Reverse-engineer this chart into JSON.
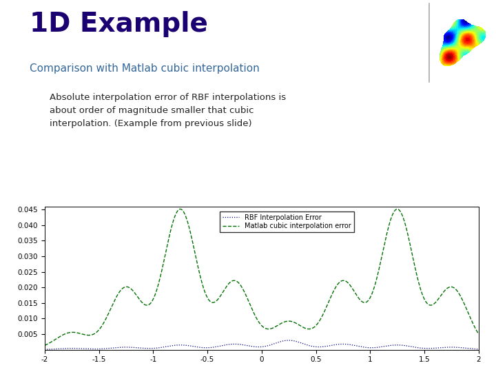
{
  "title": "1D Example",
  "subtitle": "Comparison with Matlab cubic interpolation",
  "body_text": "Absolute interpolation error of RBF interpolations is\nabout order of magnitude smaller that cubic\ninterpolation. (Example from previous slide)",
  "bg_color": "#ffffff",
  "title_color": "#1a0070",
  "subtitle_color": "#336699",
  "body_text_color": "#222222",
  "plot_xlim": [
    -2,
    2
  ],
  "plot_ylim": [
    0,
    0.046
  ],
  "ytick_vals": [
    0.005,
    0.01,
    0.015,
    0.02,
    0.025,
    0.03,
    0.035,
    0.04,
    0.045
  ],
  "xtick_vals": [
    -2,
    -1.5,
    -1,
    -0.5,
    0,
    0.5,
    1,
    1.5,
    2
  ],
  "rbf_color": "#00008B",
  "matlab_color": "#007000",
  "legend_labels": [
    "RBF Interpolation Error",
    "Matlab cubic interpolation error"
  ],
  "nodes": [
    -2,
    -1.5,
    -1,
    -0.5,
    0,
    0.5,
    1,
    1.5,
    2
  ],
  "matlab_amplitudes": [
    0.0055,
    0.02,
    0.045,
    0.022,
    0.009,
    0.022,
    0.045,
    0.02,
    0.0055
  ],
  "rbf_amplitudes": [
    0.0004,
    0.0008,
    0.0015,
    0.0018,
    0.003,
    0.0018,
    0.0015,
    0.0008,
    0.0004
  ]
}
